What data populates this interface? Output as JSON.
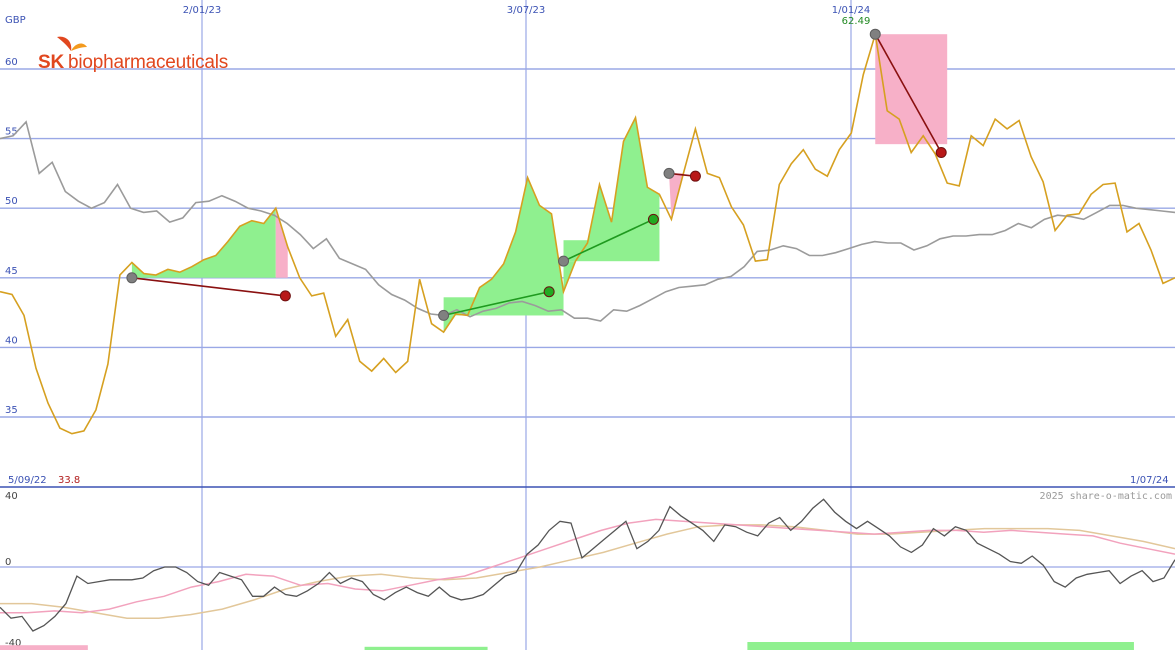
{
  "currency": "GBP",
  "brand": {
    "name_bold": "SK",
    "name_rest": "biopharmaceuticals",
    "color": "#e1471f",
    "icon": "sk-butterfly-logo-icon"
  },
  "watermark": "2025 share-o-matic.com",
  "range": {
    "start_label": "5/09/22",
    "end_label": "1/07/24",
    "min_label": "33.8",
    "max_label": "62.49"
  },
  "chart_data": [
    {
      "type": "line",
      "title": "",
      "ylabel": "GBP",
      "ylim": [
        31,
        64
      ],
      "yticks": [
        35,
        40,
        45,
        50,
        55,
        60
      ],
      "xticks": [
        {
          "label": "2/01/23",
          "index": 22
        },
        {
          "label": "3/07/23",
          "index": 65
        },
        {
          "label": "1/01/24",
          "index": 108
        }
      ],
      "grid": true,
      "series": [
        {
          "role": "price",
          "color": "#d6a020",
          "values": [
            44.0,
            43.8,
            42.3,
            38.5,
            36.0,
            34.2,
            33.8,
            34.0,
            35.5,
            38.8,
            45.2,
            46.1,
            45.3,
            45.2,
            45.6,
            45.4,
            45.8,
            46.3,
            46.6,
            47.6,
            48.7,
            49.1,
            48.9,
            50.0,
            47.2,
            45.0,
            43.7,
            43.9,
            40.8,
            42.0,
            39.0,
            38.3,
            39.2,
            38.2,
            39.0,
            44.9,
            41.7,
            41.1,
            42.4,
            42.3,
            44.3,
            44.9,
            46.0,
            48.3,
            52.2,
            50.2,
            49.6,
            44.0,
            46.2,
            47.5,
            51.7,
            49.0,
            54.8,
            56.5,
            51.5,
            51.0,
            49.2,
            52.5,
            55.7,
            52.5,
            52.2,
            50.1,
            48.8,
            46.2,
            46.3,
            51.7,
            53.2,
            54.2,
            52.8,
            52.3,
            54.2,
            55.4,
            59.6,
            62.5,
            57.0,
            56.4,
            54.0,
            55.2,
            53.9,
            51.8,
            51.6,
            55.2,
            54.5,
            56.4,
            55.7,
            56.3,
            53.7,
            51.9,
            48.4,
            49.5,
            49.6,
            51.0,
            51.7,
            51.8,
            48.3,
            48.9,
            47.0,
            44.6,
            45.0
          ],
          "x_step_index": 6.5
        },
        {
          "role": "relative",
          "color": "#9b9b9b",
          "values": [
            55.0,
            55.2,
            56.2,
            52.5,
            53.3,
            51.2,
            50.5,
            50.0,
            50.4,
            51.7,
            50.0,
            49.7,
            49.8,
            49.0,
            49.3,
            50.4,
            50.5,
            50.9,
            50.5,
            50.0,
            49.8,
            49.5,
            48.9,
            48.1,
            47.1,
            47.8,
            46.4,
            46.0,
            45.6,
            44.5,
            43.8,
            43.4,
            42.8,
            42.4,
            42.3,
            42.7,
            42.2,
            42.6,
            42.8,
            43.2,
            43.3,
            43.0,
            42.6,
            42.7,
            42.1,
            42.1,
            41.9,
            42.7,
            42.6,
            43.0,
            43.5,
            44.0,
            44.3,
            44.4,
            44.5,
            44.9,
            45.1,
            45.8,
            46.9,
            47.0,
            47.3,
            47.1,
            46.6,
            46.6,
            46.8,
            47.1,
            47.4,
            47.6,
            47.5,
            47.5,
            47.0,
            47.3,
            47.8,
            48.0,
            48.0,
            48.1,
            48.1,
            48.4,
            48.9,
            48.6,
            49.2,
            49.5,
            49.4,
            49.2,
            49.7,
            50.2,
            50.2,
            50.0,
            49.9,
            49.8,
            49.7
          ],
          "x_step_index": 12.9
        }
      ],
      "trades": [
        {
          "from": [
            11,
            45.0
          ],
          "to": [
            23.8,
            43.7
          ],
          "result": "loss"
        },
        {
          "from": [
            37,
            42.3
          ],
          "to": [
            45.8,
            44.0
          ],
          "result": "gain"
        },
        {
          "from": [
            47,
            46.2
          ],
          "to": [
            54.5,
            49.2
          ],
          "result": "gain"
        },
        {
          "from": [
            55.8,
            52.5
          ],
          "to": [
            58,
            52.3
          ],
          "result": "loss"
        },
        {
          "from": [
            73,
            62.5
          ],
          "to": [
            78.5,
            54.0
          ],
          "result": "loss"
        }
      ],
      "shaded_regions": [
        {
          "x": [
            11,
            23
          ],
          "base": 45.0,
          "type": "gain"
        },
        {
          "x": [
            23,
            24
          ],
          "base": 45.0,
          "type": "loss"
        },
        {
          "x": [
            37,
            47
          ],
          "base": 42.3,
          "type": "gain"
        },
        {
          "x": [
            47,
            55
          ],
          "base": 46.2,
          "type": "gain"
        },
        {
          "x": [
            55.8,
            57
          ],
          "base": 52.5,
          "type": "mixed"
        },
        {
          "x": [
            73,
            79
          ],
          "base": 62.5,
          "type": "loss"
        }
      ]
    },
    {
      "type": "line",
      "title": "",
      "ylim": [
        -40,
        45
      ],
      "yticks": [
        -40,
        0,
        40
      ],
      "series": [
        {
          "role": "oscillator",
          "color": "#555555",
          "values": [
            -22,
            -28,
            -27,
            -35,
            -32,
            -27,
            -20,
            -5,
            -9,
            -8,
            -7,
            -7,
            -7,
            -6,
            -2,
            0,
            0,
            -3,
            -8,
            -10,
            -3,
            -5,
            -7,
            -16,
            -16,
            -11,
            -15,
            -16,
            -13,
            -9,
            -3,
            -9,
            -6,
            -8,
            -15,
            -18,
            -14,
            -11,
            -14,
            -16,
            -11,
            -16,
            -18,
            -17,
            -15,
            -10,
            -5,
            -3,
            7,
            12,
            20,
            25,
            24,
            5,
            10,
            15,
            20,
            25,
            10,
            14,
            20,
            33,
            28,
            24,
            20,
            14,
            23,
            22,
            19,
            17,
            24,
            27,
            20,
            25,
            32,
            37,
            30,
            25,
            21,
            25,
            21,
            17,
            11,
            8,
            12,
            21,
            17,
            22,
            20,
            13,
            10,
            7,
            3,
            2,
            6,
            1,
            -8,
            -11,
            -6,
            -4,
            -3,
            -2,
            -9,
            -5,
            -2,
            -8,
            -6,
            4
          ],
          "x_step_index": 1.0
        },
        {
          "role": "signal-fast",
          "color": "#f2a2bd",
          "values": [
            -25,
            -25,
            -24,
            -25,
            -23,
            -19,
            -16,
            -11,
            -8,
            -4,
            -5,
            -10,
            -9,
            -12,
            -13,
            -10,
            -7,
            -5,
            0,
            5,
            10,
            15,
            20,
            24,
            26,
            25,
            24,
            23,
            22,
            21,
            20,
            19,
            18,
            19,
            20,
            20,
            19,
            20,
            19,
            18,
            17,
            13,
            10,
            7
          ],
          "x_step_index": 2.5
        },
        {
          "role": "signal-slow",
          "color": "#e2c79a",
          "values": [
            -20,
            -20,
            -22,
            -25,
            -28,
            -28,
            -26,
            -23,
            -18,
            -12,
            -8,
            -5,
            -4,
            -6,
            -7,
            -6,
            -3,
            0,
            4,
            8,
            13,
            18,
            22,
            23,
            23,
            22,
            20,
            18,
            18,
            19,
            20,
            21,
            21,
            21,
            20,
            17,
            14,
            10
          ],
          "x_step_index": 2.9
        }
      ],
      "histogram": [
        {
          "x": [
            0,
            5
          ],
          "sign": "negative",
          "value": 3
        },
        {
          "x": [
            20,
            27
          ],
          "sign": "positive",
          "value": 2
        },
        {
          "x": [
            41,
            63
          ],
          "sign": "positive",
          "value": 5
        },
        {
          "x": [
            74,
            76
          ],
          "sign": "positive",
          "value": 2
        }
      ]
    }
  ]
}
